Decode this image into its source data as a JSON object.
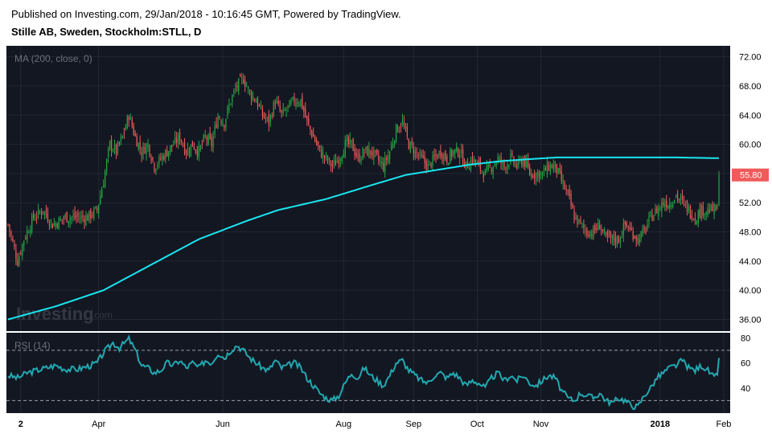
{
  "header": {
    "published": "Published on Investing.com, 29/Jan/2018 - 10:16:45 GMT, Powered by TradingView.",
    "instrument": "Stille AB, Sweden, Stockholm:STLL, D"
  },
  "watermark": {
    "brand": "Investing",
    "suffix": ".com"
  },
  "colors": {
    "background": "#131722",
    "up": "#26a641",
    "down": "#f05a5a",
    "ma": "#19e6f0",
    "rsi": "#22a8b0",
    "price_badge": "#f05a5a"
  },
  "chart_data": [
    {
      "type": "candlestick",
      "indicator_label": "MA (200, close, 0)",
      "y_ticks": [
        "72.00",
        "68.00",
        "64.00",
        "60.00",
        "56.00",
        "52.00",
        "48.00",
        "44.00",
        "40.00",
        "36.00"
      ],
      "ylim": [
        34.4,
        73.5
      ],
      "last_price_label": "55.80",
      "x_ticks": [
        {
          "label": "2",
          "i": 8,
          "bold": true
        },
        {
          "label": "Apr",
          "i": 57,
          "bold": false
        },
        {
          "label": "Jun",
          "i": 135,
          "bold": false
        },
        {
          "label": "Aug",
          "i": 211,
          "bold": false
        },
        {
          "label": "Sep",
          "i": 255,
          "bold": false
        },
        {
          "label": "Oct",
          "i": 295,
          "bold": false
        },
        {
          "label": "Nov",
          "i": 335,
          "bold": false
        },
        {
          "label": "2018",
          "i": 410,
          "bold": true
        },
        {
          "label": "Feb",
          "i": 450,
          "bold": false
        }
      ],
      "close_anchors": [
        [
          0,
          49
        ],
        [
          6,
          44
        ],
        [
          10,
          47
        ],
        [
          16,
          50
        ],
        [
          22,
          51
        ],
        [
          28,
          49
        ],
        [
          36,
          50
        ],
        [
          44,
          50
        ],
        [
          50,
          50
        ],
        [
          56,
          51
        ],
        [
          60,
          55
        ],
        [
          64,
          60
        ],
        [
          68,
          59
        ],
        [
          72,
          61
        ],
        [
          76,
          64
        ],
        [
          80,
          61
        ],
        [
          84,
          59
        ],
        [
          88,
          60
        ],
        [
          92,
          57
        ],
        [
          96,
          58
        ],
        [
          100,
          59
        ],
        [
          104,
          60
        ],
        [
          108,
          61
        ],
        [
          112,
          59
        ],
        [
          116,
          60
        ],
        [
          120,
          59
        ],
        [
          124,
          61
        ],
        [
          128,
          60
        ],
        [
          132,
          64
        ],
        [
          136,
          63
        ],
        [
          140,
          66
        ],
        [
          144,
          68
        ],
        [
          148,
          69
        ],
        [
          152,
          67
        ],
        [
          156,
          66
        ],
        [
          160,
          64
        ],
        [
          164,
          63
        ],
        [
          168,
          66
        ],
        [
          172,
          64
        ],
        [
          176,
          65
        ],
        [
          180,
          66
        ],
        [
          184,
          66
        ],
        [
          188,
          63
        ],
        [
          192,
          61
        ],
        [
          196,
          59
        ],
        [
          200,
          58
        ],
        [
          204,
          57
        ],
        [
          208,
          58
        ],
        [
          212,
          60
        ],
        [
          216,
          60
        ],
        [
          220,
          58
        ],
        [
          224,
          59
        ],
        [
          228,
          59
        ],
        [
          232,
          58
        ],
        [
          236,
          57
        ],
        [
          240,
          59
        ],
        [
          244,
          62
        ],
        [
          248,
          63
        ],
        [
          252,
          60
        ],
        [
          256,
          59
        ],
        [
          260,
          58
        ],
        [
          264,
          57
        ],
        [
          268,
          58
        ],
        [
          272,
          59
        ],
        [
          276,
          58
        ],
        [
          280,
          59
        ],
        [
          284,
          59
        ],
        [
          288,
          57
        ],
        [
          292,
          58
        ],
        [
          296,
          57
        ],
        [
          300,
          56
        ],
        [
          304,
          57
        ],
        [
          308,
          58
        ],
        [
          312,
          57
        ],
        [
          316,
          58
        ],
        [
          320,
          57
        ],
        [
          324,
          58
        ],
        [
          328,
          56
        ],
        [
          332,
          56
        ],
        [
          336,
          56
        ],
        [
          340,
          57
        ],
        [
          344,
          57
        ],
        [
          348,
          55
        ],
        [
          352,
          53
        ],
        [
          356,
          50
        ],
        [
          360,
          49
        ],
        [
          364,
          48
        ],
        [
          368,
          48
        ],
        [
          372,
          49
        ],
        [
          376,
          47
        ],
        [
          380,
          47
        ],
        [
          384,
          47
        ],
        [
          388,
          49
        ],
        [
          392,
          48
        ],
        [
          396,
          47
        ],
        [
          400,
          48
        ],
        [
          404,
          50
        ],
        [
          408,
          51
        ],
        [
          412,
          52
        ],
        [
          416,
          52
        ],
        [
          420,
          53
        ],
        [
          424,
          52
        ],
        [
          428,
          51
        ],
        [
          432,
          50
        ],
        [
          436,
          51
        ],
        [
          440,
          51
        ],
        [
          444,
          51
        ],
        [
          446,
          51
        ],
        [
          447,
          55.8
        ]
      ],
      "ma_200": [
        [
          0,
          36.0
        ],
        [
          30,
          37.8
        ],
        [
          60,
          40.0
        ],
        [
          90,
          43.5
        ],
        [
          120,
          47.0
        ],
        [
          150,
          49.5
        ],
        [
          170,
          51.0
        ],
        [
          200,
          52.5
        ],
        [
          230,
          54.5
        ],
        [
          250,
          55.8
        ],
        [
          270,
          56.5
        ],
        [
          290,
          57.2
        ],
        [
          310,
          57.7
        ],
        [
          330,
          58.0
        ],
        [
          345,
          58.2
        ],
        [
          360,
          58.2
        ],
        [
          380,
          58.2
        ],
        [
          400,
          58.2
        ],
        [
          420,
          58.2
        ],
        [
          447,
          58.1
        ]
      ]
    },
    {
      "type": "line",
      "indicator_label": "RSI (14)",
      "y_ticks": [
        "80",
        "60",
        "40"
      ],
      "ylim": [
        20,
        84
      ],
      "reference_lines": [
        70,
        30
      ],
      "values_anchors": [
        [
          0,
          50
        ],
        [
          6,
          48
        ],
        [
          12,
          52
        ],
        [
          18,
          54
        ],
        [
          24,
          56
        ],
        [
          30,
          58
        ],
        [
          36,
          55
        ],
        [
          44,
          55
        ],
        [
          52,
          58
        ],
        [
          56,
          60
        ],
        [
          60,
          68
        ],
        [
          66,
          76
        ],
        [
          70,
          72
        ],
        [
          76,
          79
        ],
        [
          80,
          70
        ],
        [
          84,
          58
        ],
        [
          88,
          56
        ],
        [
          92,
          52
        ],
        [
          96,
          54
        ],
        [
          100,
          60
        ],
        [
          104,
          58
        ],
        [
          108,
          62
        ],
        [
          112,
          56
        ],
        [
          116,
          60
        ],
        [
          120,
          56
        ],
        [
          124,
          62
        ],
        [
          128,
          60
        ],
        [
          132,
          68
        ],
        [
          136,
          64
        ],
        [
          140,
          70
        ],
        [
          144,
          74
        ],
        [
          148,
          70
        ],
        [
          152,
          64
        ],
        [
          156,
          60
        ],
        [
          160,
          56
        ],
        [
          164,
          54
        ],
        [
          168,
          62
        ],
        [
          172,
          56
        ],
        [
          176,
          58
        ],
        [
          180,
          60
        ],
        [
          184,
          56
        ],
        [
          188,
          48
        ],
        [
          192,
          42
        ],
        [
          196,
          36
        ],
        [
          200,
          32
        ],
        [
          204,
          30
        ],
        [
          208,
          34
        ],
        [
          212,
          44
        ],
        [
          216,
          52
        ],
        [
          220,
          48
        ],
        [
          224,
          56
        ],
        [
          228,
          50
        ],
        [
          232,
          46
        ],
        [
          236,
          42
        ],
        [
          240,
          50
        ],
        [
          244,
          60
        ],
        [
          248,
          62
        ],
        [
          252,
          54
        ],
        [
          256,
          50
        ],
        [
          260,
          46
        ],
        [
          264,
          44
        ],
        [
          268,
          50
        ],
        [
          272,
          52
        ],
        [
          276,
          48
        ],
        [
          280,
          52
        ],
        [
          284,
          48
        ],
        [
          288,
          42
        ],
        [
          292,
          46
        ],
        [
          296,
          44
        ],
        [
          300,
          40
        ],
        [
          304,
          48
        ],
        [
          308,
          52
        ],
        [
          312,
          46
        ],
        [
          316,
          50
        ],
        [
          320,
          46
        ],
        [
          324,
          50
        ],
        [
          328,
          44
        ],
        [
          332,
          42
        ],
        [
          336,
          46
        ],
        [
          340,
          50
        ],
        [
          344,
          48
        ],
        [
          348,
          38
        ],
        [
          352,
          32
        ],
        [
          356,
          30
        ],
        [
          360,
          36
        ],
        [
          364,
          34
        ],
        [
          368,
          32
        ],
        [
          372,
          36
        ],
        [
          376,
          30
        ],
        [
          380,
          28
        ],
        [
          384,
          32
        ],
        [
          388,
          30
        ],
        [
          392,
          26
        ],
        [
          396,
          25
        ],
        [
          400,
          34
        ],
        [
          404,
          40
        ],
        [
          408,
          48
        ],
        [
          412,
          52
        ],
        [
          416,
          56
        ],
        [
          420,
          58
        ],
        [
          424,
          62
        ],
        [
          428,
          56
        ],
        [
          432,
          54
        ],
        [
          436,
          58
        ],
        [
          440,
          54
        ],
        [
          444,
          48
        ],
        [
          446,
          50
        ],
        [
          447,
          64
        ]
      ]
    }
  ]
}
